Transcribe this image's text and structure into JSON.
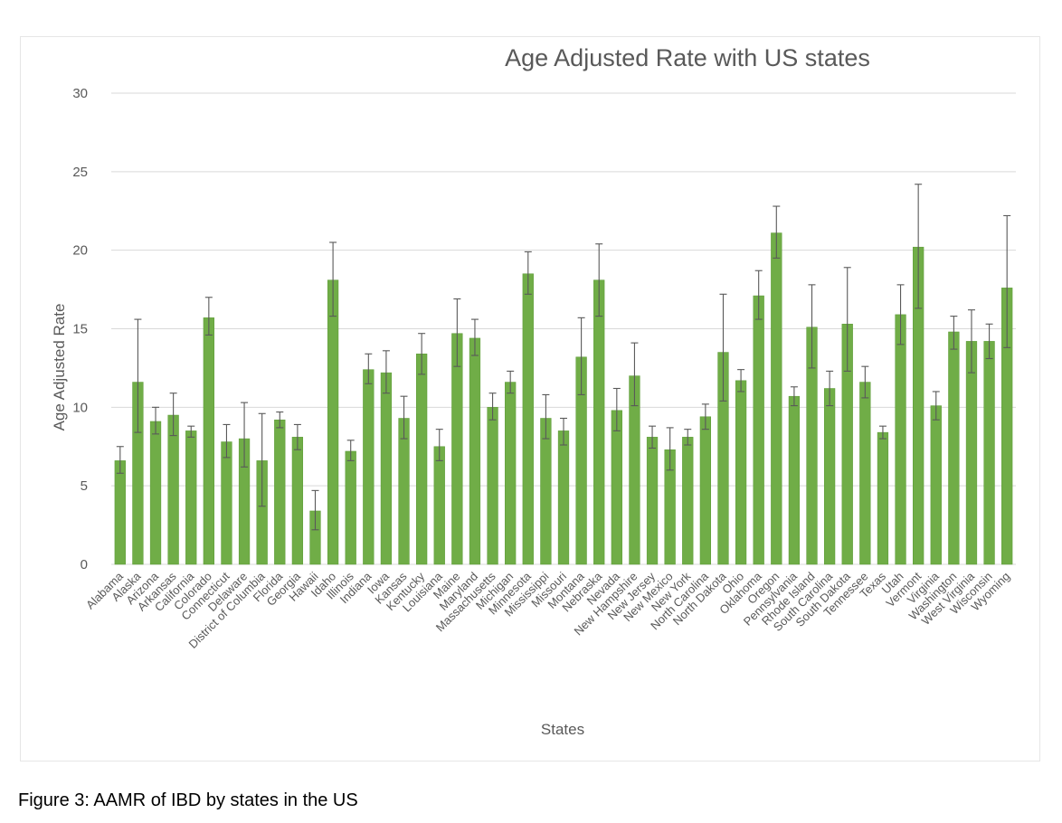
{
  "chart_data": {
    "type": "bar",
    "title": "Age Adjusted Rate with US states",
    "xlabel": "States",
    "ylabel": "Age Adjusted Rate",
    "ylim": [
      0,
      30
    ],
    "yticks": [
      0,
      5,
      10,
      15,
      20,
      25,
      30
    ],
    "grid": true,
    "color": "#70ad47",
    "categories": [
      "Alabama",
      "Alaska",
      "Arizona",
      "Arkansas",
      "California",
      "Colorado",
      "Connecticut",
      "Delaware",
      "District of Columbia",
      "Florida",
      "Georgia",
      "Hawaii",
      "Idaho",
      "Illinois",
      "Indiana",
      "Iowa",
      "Kansas",
      "Kentucky",
      "Louisiana",
      "Maine",
      "Maryland",
      "Massachusetts",
      "Michigan",
      "Minnesota",
      "Mississippi",
      "Missouri",
      "Montana",
      "Nebraska",
      "Nevada",
      "New Hampshire",
      "New Jersey",
      "New Mexico",
      "New York",
      "North Carolina",
      "North Dakota",
      "Ohio",
      "Oklahoma",
      "Oregon",
      "Pennsylvania",
      "Rhode Island",
      "South Carolina",
      "South Dakota",
      "Tennessee",
      "Texas",
      "Utah",
      "Vermont",
      "Virginia",
      "Washington",
      "West Virginia",
      "Wisconsin",
      "Wyoming"
    ],
    "values": [
      6.6,
      11.6,
      9.1,
      9.5,
      8.5,
      15.7,
      7.8,
      8.0,
      6.6,
      9.2,
      8.1,
      3.4,
      18.1,
      7.2,
      12.4,
      12.2,
      9.3,
      13.4,
      7.5,
      14.7,
      14.4,
      10.0,
      11.6,
      18.5,
      9.3,
      8.5,
      13.2,
      18.1,
      9.8,
      12.0,
      8.1,
      7.3,
      8.1,
      9.4,
      13.5,
      11.7,
      17.1,
      21.1,
      10.7,
      15.1,
      11.2,
      15.3,
      11.6,
      8.4,
      15.9,
      20.2,
      10.1,
      14.8,
      14.2,
      14.2,
      17.6
    ],
    "error_low": [
      5.8,
      8.4,
      8.3,
      8.2,
      8.1,
      14.6,
      6.8,
      6.2,
      3.7,
      8.7,
      7.3,
      2.2,
      15.8,
      6.6,
      11.5,
      10.9,
      8.0,
      12.1,
      6.6,
      12.6,
      13.3,
      9.2,
      10.9,
      17.2,
      8.0,
      7.6,
      10.8,
      15.8,
      8.5,
      10.1,
      7.4,
      6.0,
      7.6,
      8.6,
      10.4,
      11.0,
      15.6,
      19.5,
      10.1,
      12.5,
      10.1,
      12.3,
      10.6,
      8.0,
      14.0,
      16.3,
      9.2,
      13.7,
      12.2,
      13.1,
      13.8
    ],
    "error_high": [
      7.5,
      15.6,
      10.0,
      10.9,
      8.8,
      17.0,
      8.9,
      10.3,
      9.6,
      9.7,
      8.9,
      4.7,
      20.5,
      7.9,
      13.4,
      13.6,
      10.7,
      14.7,
      8.6,
      16.9,
      15.6,
      10.9,
      12.3,
      19.9,
      10.8,
      9.3,
      15.7,
      20.4,
      11.2,
      14.1,
      8.8,
      8.7,
      8.6,
      10.2,
      17.2,
      12.4,
      18.7,
      22.8,
      11.3,
      17.8,
      12.3,
      18.9,
      12.6,
      8.8,
      17.8,
      24.2,
      11.0,
      15.8,
      16.2,
      15.3,
      22.2
    ]
  },
  "caption": "Figure 3: AAMR of IBD by states in the US"
}
